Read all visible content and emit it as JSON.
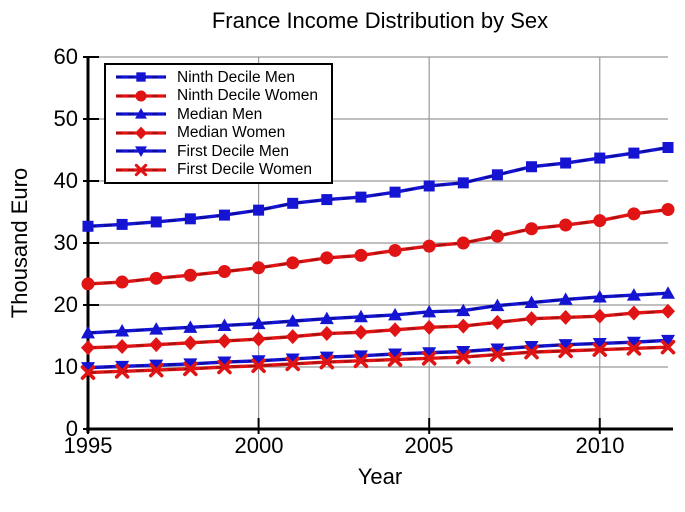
{
  "chart_data": {
    "type": "line",
    "title": "France Income Distribution by Sex",
    "xlabel": "Year",
    "ylabel": "Thousand Euro",
    "xlim": [
      1995,
      2012
    ],
    "ylim": [
      0,
      60
    ],
    "x_ticks": [
      "1995",
      "2000",
      "2005",
      "2010"
    ],
    "x_tick_values": [
      1995,
      2000,
      2005,
      2010
    ],
    "y_ticks": [
      "0",
      "10",
      "20",
      "30",
      "40",
      "50",
      "60"
    ],
    "y_tick_values": [
      0,
      10,
      20,
      30,
      40,
      50,
      60
    ],
    "grid": true,
    "legend_position": "top-left",
    "x": [
      1995,
      1996,
      1997,
      1998,
      1999,
      2000,
      2001,
      2002,
      2003,
      2004,
      2005,
      2006,
      2007,
      2008,
      2009,
      2010,
      2011,
      2012
    ],
    "series": [
      {
        "name": "Ninth Decile Men",
        "marker": "square",
        "color": "#1414d2",
        "dash_color": "#0a0a9b",
        "values": [
          32.7,
          33.0,
          33.4,
          33.9,
          34.5,
          35.3,
          36.4,
          37.0,
          37.4,
          38.2,
          39.2,
          39.7,
          41.0,
          42.3,
          42.9,
          43.7,
          44.5,
          45.4
        ]
      },
      {
        "name": "Ninth Decile Women",
        "marker": "circle",
        "color": "#e01414",
        "dash_color": "#a61010",
        "values": [
          23.4,
          23.7,
          24.3,
          24.8,
          25.4,
          26.0,
          26.8,
          27.6,
          28.0,
          28.8,
          29.5,
          30.0,
          31.1,
          32.3,
          32.9,
          33.6,
          34.7,
          35.4
        ]
      },
      {
        "name": "Median Men",
        "marker": "triangle-up",
        "color": "#1414d2",
        "dash_color": "#0a0a9b",
        "values": [
          15.5,
          15.8,
          16.1,
          16.4,
          16.7,
          17.0,
          17.4,
          17.8,
          18.1,
          18.4,
          18.9,
          19.1,
          19.9,
          20.4,
          20.9,
          21.3,
          21.6,
          21.9
        ]
      },
      {
        "name": "Median Women",
        "marker": "diamond",
        "color": "#e01414",
        "dash_color": "#a61010",
        "values": [
          13.1,
          13.3,
          13.6,
          13.9,
          14.2,
          14.5,
          14.9,
          15.4,
          15.6,
          16.0,
          16.4,
          16.6,
          17.2,
          17.8,
          18.0,
          18.2,
          18.7,
          19.0
        ]
      },
      {
        "name": "First Decile Men",
        "marker": "triangle-down",
        "color": "#1414d2",
        "dash_color": "#0a0a9b",
        "values": [
          9.9,
          10.1,
          10.3,
          10.5,
          10.8,
          11.0,
          11.3,
          11.6,
          11.8,
          12.1,
          12.3,
          12.5,
          12.9,
          13.3,
          13.6,
          13.8,
          14.0,
          14.3
        ]
      },
      {
        "name": "First Decile Women",
        "marker": "x",
        "color": "#e01414",
        "dash_color": "#a61010",
        "values": [
          9.1,
          9.3,
          9.5,
          9.7,
          10.0,
          10.2,
          10.5,
          10.8,
          11.0,
          11.2,
          11.4,
          11.6,
          12.0,
          12.4,
          12.6,
          12.8,
          13.0,
          13.2
        ]
      }
    ],
    "colors": {
      "grid": "#999999",
      "axis": "#000000",
      "background": "#ffffff",
      "legend_border": "#000000"
    }
  }
}
